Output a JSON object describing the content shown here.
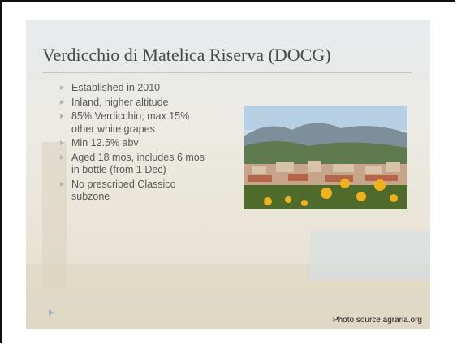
{
  "slide": {
    "title": "Verdicchio di Matelica Riserva (DOCG)",
    "bullets": [
      "Established in 2010",
      "Inland, higher altitude",
      "85% Verdicchio; max 15% other white grapes",
      "Min 12.5% abv",
      "Aged 18 mos, includes 6 mos in bottle (from 1 Dec)",
      "No prescribed Classico subzone"
    ],
    "photo_credit": "Photo source.agraria.org"
  }
}
